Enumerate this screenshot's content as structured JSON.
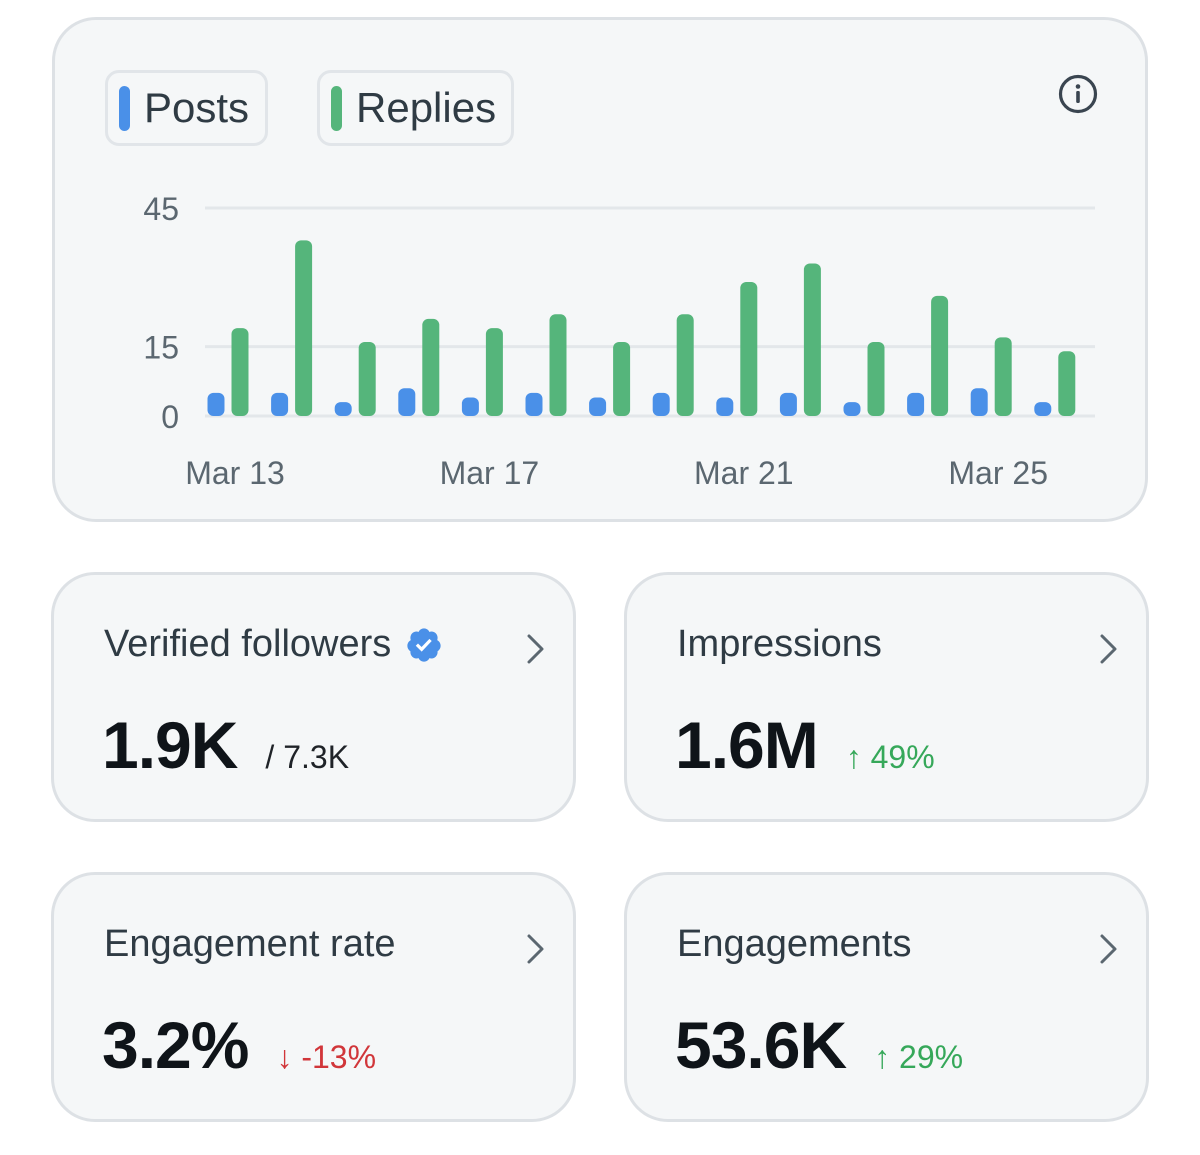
{
  "legend": {
    "posts_label": "Posts",
    "replies_label": "Replies",
    "posts_color": "#4a90e8",
    "replies_color": "#55b57b"
  },
  "info_icon": "info-circle-icon",
  "chart_data": {
    "type": "bar",
    "categories": [
      "Mar 13",
      "Mar 14",
      "Mar 15",
      "Mar 16",
      "Mar 17",
      "Mar 18",
      "Mar 19",
      "Mar 20",
      "Mar 21",
      "Mar 22",
      "Mar 23",
      "Mar 24",
      "Mar 25",
      "Mar 26"
    ],
    "x_tick_labels": [
      "Mar 13",
      "Mar 17",
      "Mar 21",
      "Mar 25"
    ],
    "series": [
      {
        "name": "Posts",
        "color": "#4a90e8",
        "values": [
          5,
          5,
          3,
          6,
          4,
          5,
          4,
          5,
          4,
          5,
          3,
          5,
          6,
          3
        ]
      },
      {
        "name": "Replies",
        "color": "#55b57b",
        "values": [
          19,
          38,
          16,
          21,
          19,
          22,
          16,
          22,
          29,
          33,
          16,
          26,
          17,
          14
        ]
      }
    ],
    "y_ticks": [
      0,
      15,
      45
    ],
    "ylim": [
      0,
      45
    ],
    "grid": true,
    "title": "",
    "xlabel": "",
    "ylabel": ""
  },
  "stats": {
    "verified": {
      "title": "Verified followers",
      "value": "1.9K",
      "sub": "/ 7.3K"
    },
    "impressions": {
      "title": "Impressions",
      "value": "1.6M",
      "change": "↑ 49%"
    },
    "engagement_rate": {
      "title": "Engagement rate",
      "value": "3.2%",
      "change": "↓ -13%"
    },
    "engagements": {
      "title": "Engagements",
      "value": "53.6K",
      "change": "↑ 29%"
    }
  }
}
